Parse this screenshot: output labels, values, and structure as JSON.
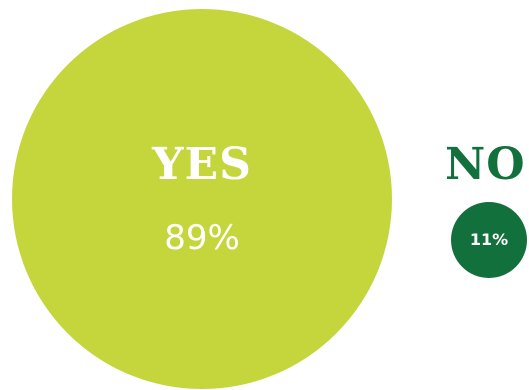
{
  "chart_data": {
    "type": "pie",
    "title": "",
    "categories": [
      "YES",
      "NO"
    ],
    "values": [
      89,
      11
    ],
    "value_labels": [
      "89%",
      "11%"
    ],
    "colors": [
      "#c5d63d",
      "#12703c"
    ],
    "legend": "none"
  }
}
